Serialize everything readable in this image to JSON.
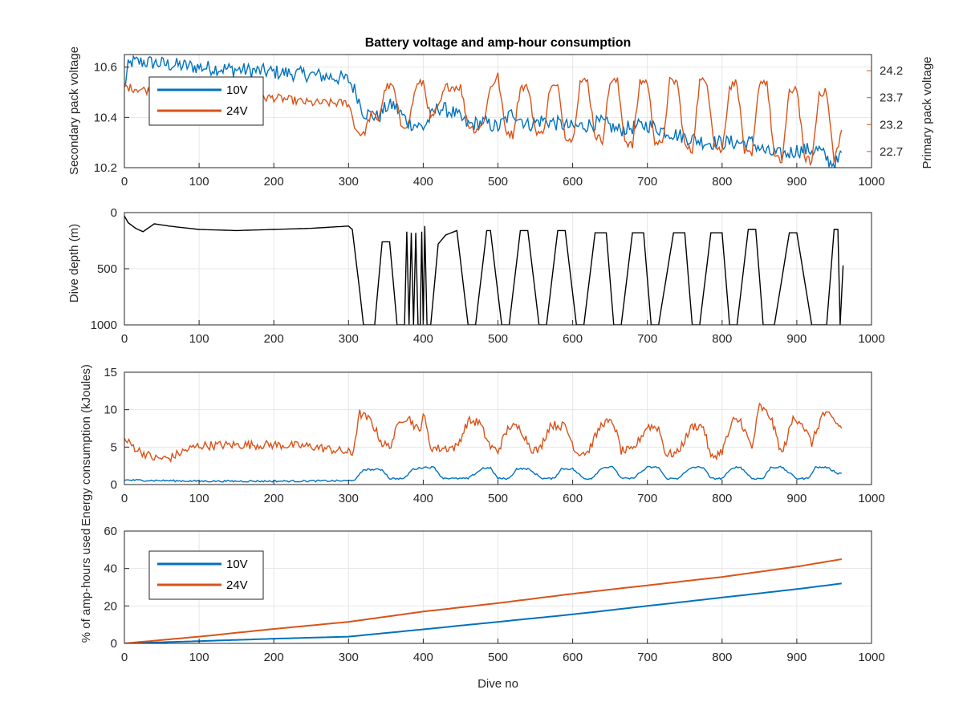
{
  "colors": {
    "v10": "#0072BD",
    "v24": "#D95319",
    "depth": "#000000",
    "axis": "#262626",
    "grid": "#e6e6e6"
  },
  "chart_data": [
    {
      "id": "voltage",
      "type": "line",
      "title": "Battery voltage and amp-hour consumption",
      "xlabel": "",
      "ylabel": "Secondary pack voltage",
      "ylabel_right": "Primary pack voltage",
      "xlim": [
        0,
        1000
      ],
      "xticks": [
        0,
        100,
        200,
        300,
        400,
        500,
        600,
        700,
        800,
        900,
        1000
      ],
      "ylim": [
        10.2,
        10.65
      ],
      "yticks": [
        10.2,
        10.4,
        10.6
      ],
      "ytick_labels": [
        "10.2",
        "10.4",
        "10.6"
      ],
      "ylim_right": [
        22.4,
        24.5
      ],
      "yticks_right": [
        22.7,
        23.2,
        23.7,
        24.2
      ],
      "ytick_labels_right": [
        "22.7",
        "23.2",
        "23.7",
        "24.2"
      ],
      "grid": true,
      "legend": {
        "position": "top-left",
        "entries": [
          "10V",
          "24V"
        ]
      },
      "series": [
        {
          "name": "10V",
          "axis": "left",
          "color": "#0072BD",
          "x": [
            0,
            5,
            10,
            30,
            60,
            100,
            150,
            200,
            250,
            280,
            300,
            310,
            320,
            340,
            350,
            360,
            380,
            400,
            420,
            440,
            460,
            480,
            500,
            520,
            540,
            560,
            600,
            640,
            660,
            700,
            740,
            780,
            800,
            840,
            860,
            880,
            900,
            930,
            945,
            955,
            960
          ],
          "y": [
            10.52,
            10.6,
            10.62,
            10.62,
            10.61,
            10.6,
            10.59,
            10.58,
            10.57,
            10.56,
            10.55,
            10.5,
            10.42,
            10.4,
            10.44,
            10.45,
            10.38,
            10.36,
            10.44,
            10.42,
            10.37,
            10.38,
            10.36,
            10.42,
            10.37,
            10.39,
            10.36,
            10.38,
            10.35,
            10.37,
            10.33,
            10.3,
            10.3,
            10.3,
            10.26,
            10.25,
            10.27,
            10.27,
            10.22,
            10.22,
            10.26
          ],
          "noise": 0.03
        },
        {
          "name": "24V",
          "axis": "right",
          "color": "#D95319",
          "x": [
            0,
            50,
            100,
            150,
            200,
            250,
            300,
            310,
            320,
            330,
            340,
            350,
            360,
            370,
            380,
            390,
            400,
            410,
            420,
            430,
            440,
            450,
            460,
            470,
            480,
            490,
            500,
            510,
            520,
            530,
            540,
            550,
            560,
            570,
            580,
            590,
            600,
            610,
            620,
            630,
            640,
            650,
            660,
            670,
            680,
            690,
            700,
            710,
            720,
            730,
            740,
            750,
            760,
            770,
            780,
            790,
            800,
            810,
            820,
            830,
            840,
            850,
            860,
            870,
            880,
            890,
            900,
            910,
            920,
            930,
            940,
            950,
            960
          ],
          "y": [
            23.9,
            23.8,
            23.7,
            23.7,
            23.7,
            23.6,
            23.6,
            23.1,
            23.0,
            23.4,
            23.3,
            23.9,
            23.9,
            23.2,
            23.2,
            23.9,
            24.0,
            23.3,
            23.5,
            23.9,
            23.9,
            23.9,
            23.2,
            23.1,
            23.2,
            23.9,
            24.1,
            23.1,
            23.0,
            23.9,
            23.9,
            23.1,
            23.0,
            23.9,
            23.9,
            23.0,
            22.9,
            24.0,
            24.0,
            23.0,
            22.9,
            24.0,
            24.0,
            22.9,
            22.8,
            24.0,
            24.0,
            22.9,
            22.8,
            24.0,
            24.0,
            22.8,
            22.7,
            24.0,
            24.0,
            22.8,
            22.7,
            23.9,
            24.0,
            22.7,
            22.6,
            24.0,
            24.0,
            22.6,
            22.5,
            23.8,
            23.9,
            22.6,
            22.5,
            23.8,
            23.8,
            22.5,
            23.1
          ],
          "noise": 0.08
        }
      ]
    },
    {
      "id": "depth",
      "type": "line",
      "title": "",
      "xlabel": "",
      "ylabel": "Dive depth (m)",
      "xlim": [
        0,
        1000
      ],
      "xticks": [
        0,
        100,
        200,
        300,
        400,
        500,
        600,
        700,
        800,
        900,
        1000
      ],
      "ylim": [
        0,
        1000
      ],
      "y_reversed": true,
      "yticks": [
        0,
        500,
        1000
      ],
      "ytick_labels": [
        "0",
        "500",
        "1000"
      ],
      "grid": true,
      "series": [
        {
          "name": "",
          "axis": "left",
          "color": "#000000",
          "x": [
            0,
            5,
            15,
            25,
            40,
            60,
            100,
            150,
            200,
            250,
            300,
            305,
            315,
            320,
            335,
            345,
            355,
            365,
            375,
            378,
            381,
            384,
            387,
            390,
            393,
            396,
            398,
            400,
            402,
            405,
            410,
            420,
            430,
            445,
            460,
            470,
            485,
            490,
            505,
            515,
            530,
            540,
            555,
            565,
            580,
            590,
            605,
            615,
            630,
            645,
            655,
            665,
            680,
            695,
            705,
            715,
            735,
            750,
            760,
            770,
            785,
            800,
            810,
            820,
            835,
            845,
            855,
            870,
            890,
            900,
            920,
            940,
            950,
            955,
            958,
            962
          ],
          "y": [
            30,
            90,
            140,
            170,
            100,
            120,
            150,
            160,
            150,
            140,
            120,
            150,
            700,
            1000,
            1000,
            260,
            260,
            1000,
            1000,
            170,
            1000,
            180,
            1000,
            180,
            1000,
            1000,
            170,
            1000,
            120,
            1000,
            1000,
            280,
            200,
            160,
            1000,
            1000,
            160,
            160,
            1000,
            1000,
            160,
            160,
            1000,
            1000,
            160,
            160,
            1000,
            1000,
            180,
            180,
            1000,
            1000,
            180,
            180,
            1000,
            1000,
            180,
            180,
            1000,
            1000,
            180,
            180,
            1000,
            1000,
            150,
            150,
            1000,
            1000,
            180,
            180,
            1000,
            1000,
            150,
            150,
            1000,
            470
          ],
          "noise": 0
        }
      ]
    },
    {
      "id": "energy",
      "type": "line",
      "title": "",
      "xlabel": "",
      "ylabel": "Energy consumption (kJoules)",
      "xlim": [
        0,
        1000
      ],
      "xticks": [
        0,
        100,
        200,
        300,
        400,
        500,
        600,
        700,
        800,
        900,
        1000
      ],
      "ylim": [
        0,
        15
      ],
      "yticks": [
        0,
        5,
        10,
        15
      ],
      "ytick_labels": [
        "0",
        "5",
        "10",
        "15"
      ],
      "grid": true,
      "series": [
        {
          "name": "",
          "axis": "left",
          "color": "#D95319",
          "x": [
            0,
            20,
            40,
            60,
            80,
            100,
            150,
            200,
            250,
            300,
            305,
            315,
            330,
            345,
            355,
            370,
            380,
            395,
            400,
            410,
            420,
            445,
            460,
            475,
            490,
            500,
            515,
            530,
            545,
            555,
            570,
            590,
            605,
            620,
            640,
            655,
            665,
            680,
            700,
            715,
            725,
            740,
            760,
            775,
            785,
            800,
            815,
            825,
            840,
            850,
            865,
            880,
            895,
            905,
            920,
            935,
            945,
            960
          ],
          "y": [
            6,
            4.5,
            3.5,
            3.5,
            4.5,
            5.2,
            5.3,
            5.3,
            5.1,
            4.3,
            4.0,
            9.5,
            8.5,
            5.5,
            5.0,
            8.8,
            9.0,
            7.0,
            9.5,
            5.0,
            4.8,
            5.0,
            8.5,
            8.3,
            5.0,
            4.5,
            7.8,
            7.5,
            4.8,
            4.5,
            8.0,
            7.8,
            4.3,
            4.3,
            8.3,
            8.2,
            4.5,
            4.5,
            7.8,
            7.6,
            4.0,
            4.2,
            7.8,
            7.8,
            3.5,
            4.5,
            8.5,
            8.5,
            4.8,
            10.5,
            9.0,
            4.0,
            8.8,
            8.6,
            5.5,
            9.5,
            9.0,
            7.5
          ],
          "noise": 0.6
        },
        {
          "name": "",
          "axis": "left",
          "color": "#0072BD",
          "x": [
            0,
            100,
            200,
            300,
            310,
            320,
            345,
            355,
            375,
            385,
            400,
            415,
            425,
            440,
            460,
            480,
            490,
            500,
            515,
            525,
            540,
            560,
            575,
            585,
            600,
            615,
            625,
            640,
            655,
            665,
            680,
            700,
            715,
            725,
            740,
            760,
            775,
            785,
            800,
            815,
            825,
            840,
            855,
            865,
            880,
            900,
            915,
            925,
            940,
            955,
            960
          ],
          "y": [
            0.6,
            0.45,
            0.45,
            0.5,
            0.7,
            2.0,
            2.0,
            0.8,
            0.8,
            2.0,
            2.3,
            2.3,
            0.9,
            0.8,
            0.8,
            2.2,
            2.2,
            0.8,
            0.8,
            2.1,
            2.1,
            0.8,
            0.8,
            2.1,
            2.1,
            0.8,
            0.8,
            2.3,
            2.3,
            0.8,
            0.8,
            2.3,
            2.3,
            0.8,
            0.8,
            2.3,
            2.3,
            0.8,
            0.8,
            2.3,
            2.3,
            0.8,
            0.8,
            2.3,
            2.3,
            0.8,
            0.8,
            2.3,
            2.3,
            1.5,
            1.5
          ],
          "noise": 0.12
        }
      ]
    },
    {
      "id": "amphours",
      "type": "line",
      "title": "",
      "xlabel": "Dive no",
      "ylabel": "% of amp-hours used",
      "xlim": [
        0,
        1000
      ],
      "xticks": [
        0,
        100,
        200,
        300,
        400,
        500,
        600,
        700,
        800,
        900,
        1000
      ],
      "ylim": [
        0,
        60
      ],
      "yticks": [
        0,
        20,
        40,
        60
      ],
      "ytick_labels": [
        "0",
        "20",
        "40",
        "60"
      ],
      "grid": true,
      "legend": {
        "position": "top-left",
        "entries": [
          "10V",
          "24V"
        ]
      },
      "series": [
        {
          "name": "10V",
          "axis": "left",
          "color": "#0072BD",
          "x": [
            0,
            100,
            200,
            300,
            400,
            500,
            600,
            700,
            800,
            900,
            960
          ],
          "y": [
            0,
            1.2,
            2.5,
            3.6,
            7.5,
            11.5,
            15.5,
            20,
            24.5,
            29,
            32
          ],
          "noise": 0
        },
        {
          "name": "24V",
          "axis": "left",
          "color": "#D95319",
          "x": [
            0,
            100,
            200,
            300,
            400,
            500,
            600,
            700,
            800,
            900,
            960
          ],
          "y": [
            0,
            3.6,
            7.7,
            11.5,
            17,
            21.5,
            26.5,
            31,
            35.5,
            41,
            45
          ],
          "noise": 0
        }
      ]
    }
  ]
}
